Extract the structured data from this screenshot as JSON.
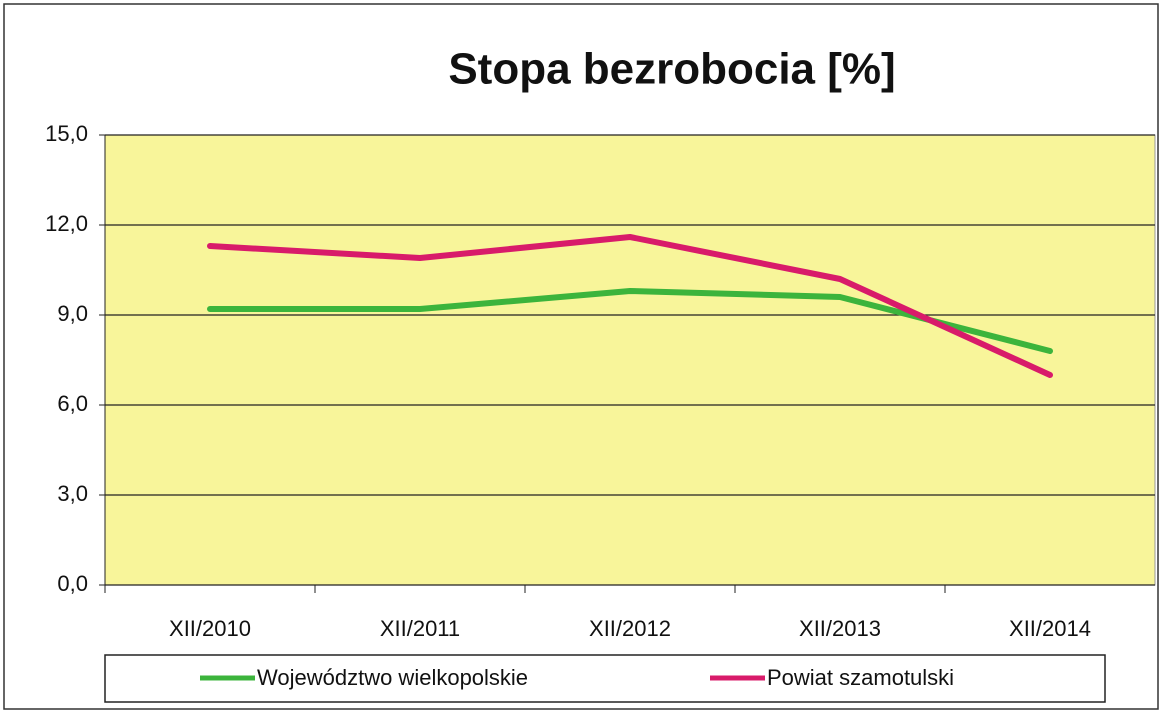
{
  "chart_data": {
    "type": "line",
    "title": "Stopa bezrobocia [%]",
    "categories": [
      "XII/2010",
      "XII/2011",
      "XII/2012",
      "XII/2013",
      "XII/2014"
    ],
    "series": [
      {
        "name": "Województwo wielkopolskie",
        "color": "#3cb43c",
        "values": [
          9.2,
          9.2,
          9.8,
          9.6,
          7.8
        ]
      },
      {
        "name": "Powiat szamotulski",
        "color": "#d81b6a",
        "values": [
          11.3,
          10.9,
          11.6,
          10.2,
          7.0
        ]
      }
    ],
    "ylim": [
      0,
      15
    ],
    "yticks": [
      {
        "value": 0,
        "label": "0,0"
      },
      {
        "value": 3,
        "label": "3,0"
      },
      {
        "value": 6,
        "label": "6,0"
      },
      {
        "value": 9,
        "label": "9,0"
      },
      {
        "value": 12,
        "label": "12,0"
      },
      {
        "value": 15,
        "label": "15,0"
      }
    ],
    "grid": true,
    "legend": "bottom"
  }
}
